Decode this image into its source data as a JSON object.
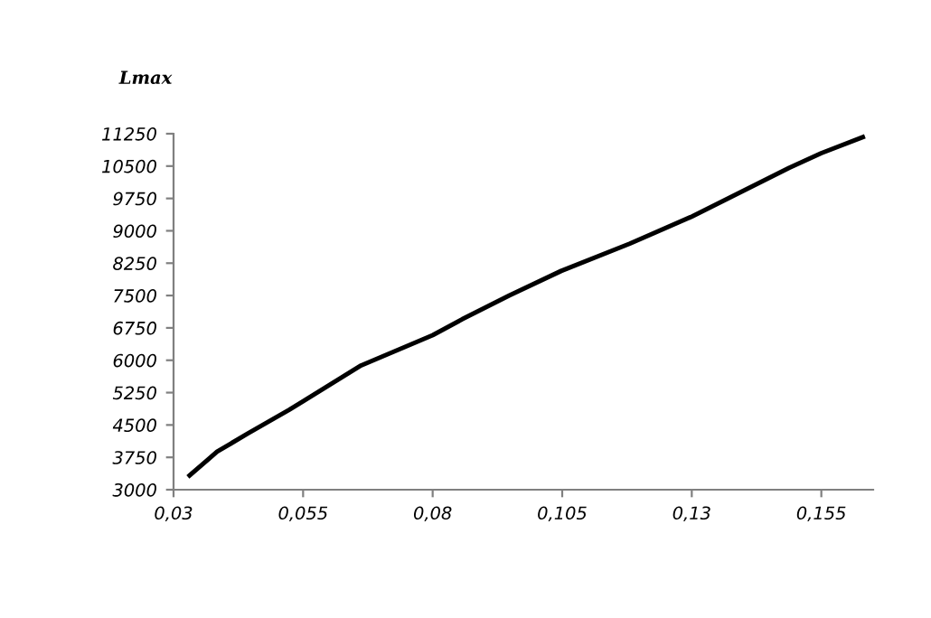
{
  "chart_data": {
    "type": "line",
    "ylabel": "Lmax",
    "x": [
      0.0331,
      0.0384,
      0.0443,
      0.0523,
      0.055,
      0.0662,
      0.08,
      0.0857,
      0.0948,
      0.1048,
      0.118,
      0.13,
      0.1488,
      0.155,
      0.163
    ],
    "series": [
      {
        "color": "#000000",
        "values": [
          3330,
          3880,
          4300,
          4850,
          5050,
          5880,
          6580,
          6950,
          7500,
          8070,
          8700,
          9330,
          10460,
          10800,
          11170
        ]
      }
    ],
    "xlim": [
      0.03,
      0.165
    ],
    "ylim": [
      3000,
      11250
    ],
    "xticks": [
      {
        "value": 0.03,
        "label": "0,03"
      },
      {
        "value": 0.055,
        "label": "0,055"
      },
      {
        "value": 0.08,
        "label": "0,08"
      },
      {
        "value": 0.105,
        "label": "0,105"
      },
      {
        "value": 0.13,
        "label": "0,13"
      },
      {
        "value": 0.155,
        "label": "0,155"
      }
    ],
    "yticks": [
      3000,
      3750,
      4500,
      5250,
      6000,
      6750,
      7500,
      8250,
      9000,
      9750,
      10500,
      11250
    ],
    "grid": false,
    "legend": false,
    "marker": "none",
    "line_style": "solid"
  }
}
